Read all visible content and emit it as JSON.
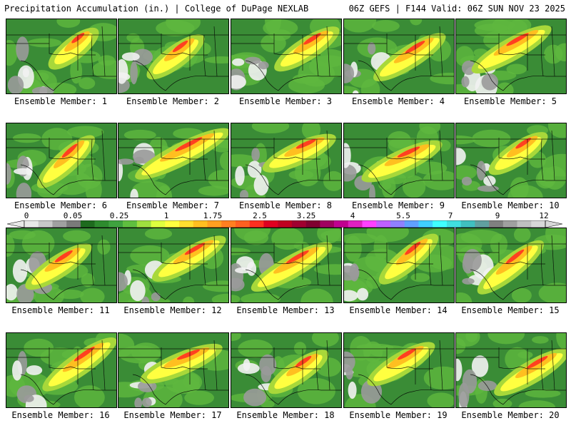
{
  "header": {
    "left": "Precipitation Accumulation (in.) | College of DuPage NEXLAB",
    "right": "06Z GEFS | F144 Valid: 06Z SUN NOV 23 2025"
  },
  "colorbar": {
    "labels": [
      "0",
      "0.05",
      "0.25",
      "1",
      "1.75",
      "2.5",
      "3.25",
      "4",
      "5.5",
      "7",
      "9",
      "12"
    ],
    "colors": [
      "#e8e8e8",
      "#c8c8c8",
      "#a0a0a0",
      "#7a7a7a",
      "#1e6b1e",
      "#2e8b2e",
      "#3fa33f",
      "#5fbf3f",
      "#9fdf3f",
      "#dfff3f",
      "#ffff40",
      "#ffdf30",
      "#ffbf20",
      "#ff9f20",
      "#ff7f20",
      "#ff5f20",
      "#ff2f20",
      "#e00020",
      "#c00020",
      "#a00030",
      "#800030",
      "#a00060",
      "#c00090",
      "#e020c0",
      "#ff40ff",
      "#c060ff",
      "#9080ff",
      "#60a0ff",
      "#40d0ff",
      "#40ffff",
      "#40e0e0",
      "#40c0c0",
      "#60a0a0",
      "#808080",
      "#a0a0a0",
      "#c0c0c0",
      "#d8d8d8"
    ]
  },
  "members": [
    {
      "label": "Ensemble Member: 1"
    },
    {
      "label": "Ensemble Member: 2"
    },
    {
      "label": "Ensemble Member: 3"
    },
    {
      "label": "Ensemble Member: 4"
    },
    {
      "label": "Ensemble Member: 5"
    },
    {
      "label": "Ensemble Member: 6"
    },
    {
      "label": "Ensemble Member: 7"
    },
    {
      "label": "Ensemble Member: 8"
    },
    {
      "label": "Ensemble Member: 9"
    },
    {
      "label": "Ensemble Member: 10"
    },
    {
      "label": "Ensemble Member: 11"
    },
    {
      "label": "Ensemble Member: 12"
    },
    {
      "label": "Ensemble Member: 13"
    },
    {
      "label": "Ensemble Member: 14"
    },
    {
      "label": "Ensemble Member: 15"
    },
    {
      "label": "Ensemble Member: 16"
    },
    {
      "label": "Ensemble Member: 17"
    },
    {
      "label": "Ensemble Member: 18"
    },
    {
      "label": "Ensemble Member: 19"
    },
    {
      "label": "Ensemble Member: 20"
    }
  ]
}
